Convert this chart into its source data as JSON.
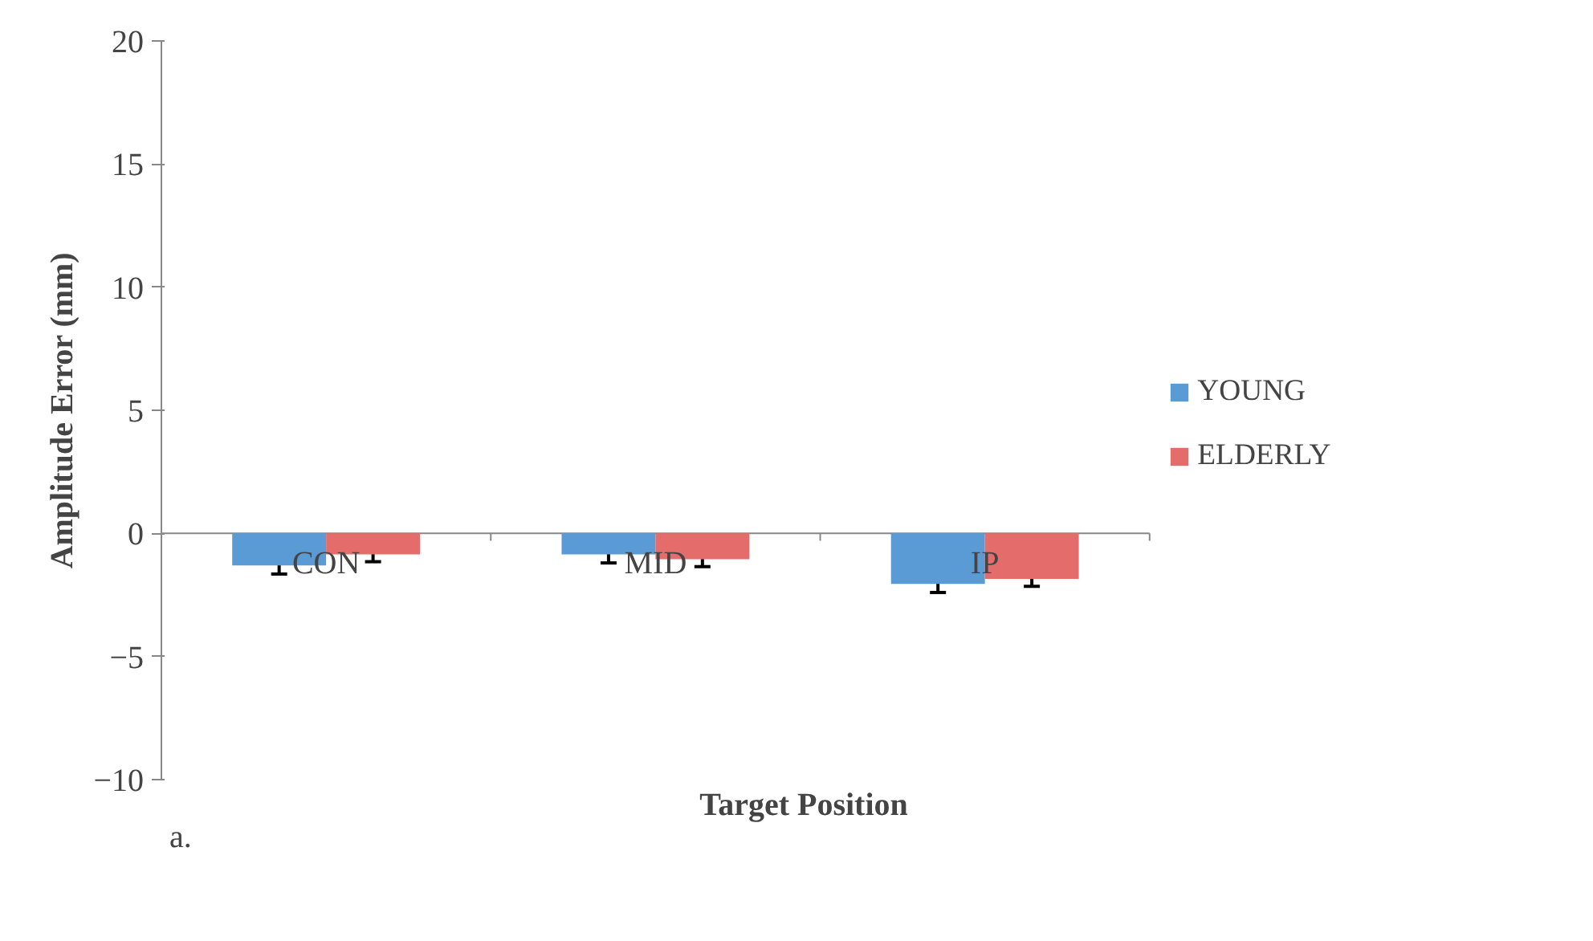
{
  "chart_data": {
    "type": "bar",
    "xlabel": "Target Position",
    "ylabel": "Amplitude Error (mm)",
    "categories": [
      "CON",
      "MID",
      "IP"
    ],
    "series": [
      {
        "name": "YOUNG",
        "color": "#5b9bd5",
        "values": [
          -1.3,
          -0.85,
          -2.05
        ],
        "errors": [
          0.35,
          0.35,
          0.35
        ]
      },
      {
        "name": "ELDERLY",
        "color": "#e46c6a",
        "values": [
          -0.85,
          -1.05,
          -1.85
        ],
        "errors": [
          0.3,
          0.3,
          0.3
        ]
      }
    ],
    "ylim": [
      -10,
      20
    ],
    "yticks": [
      -10,
      -5,
      0,
      5,
      10,
      15,
      20
    ],
    "grid": false,
    "legend": "right",
    "annotations": [
      "a."
    ]
  }
}
